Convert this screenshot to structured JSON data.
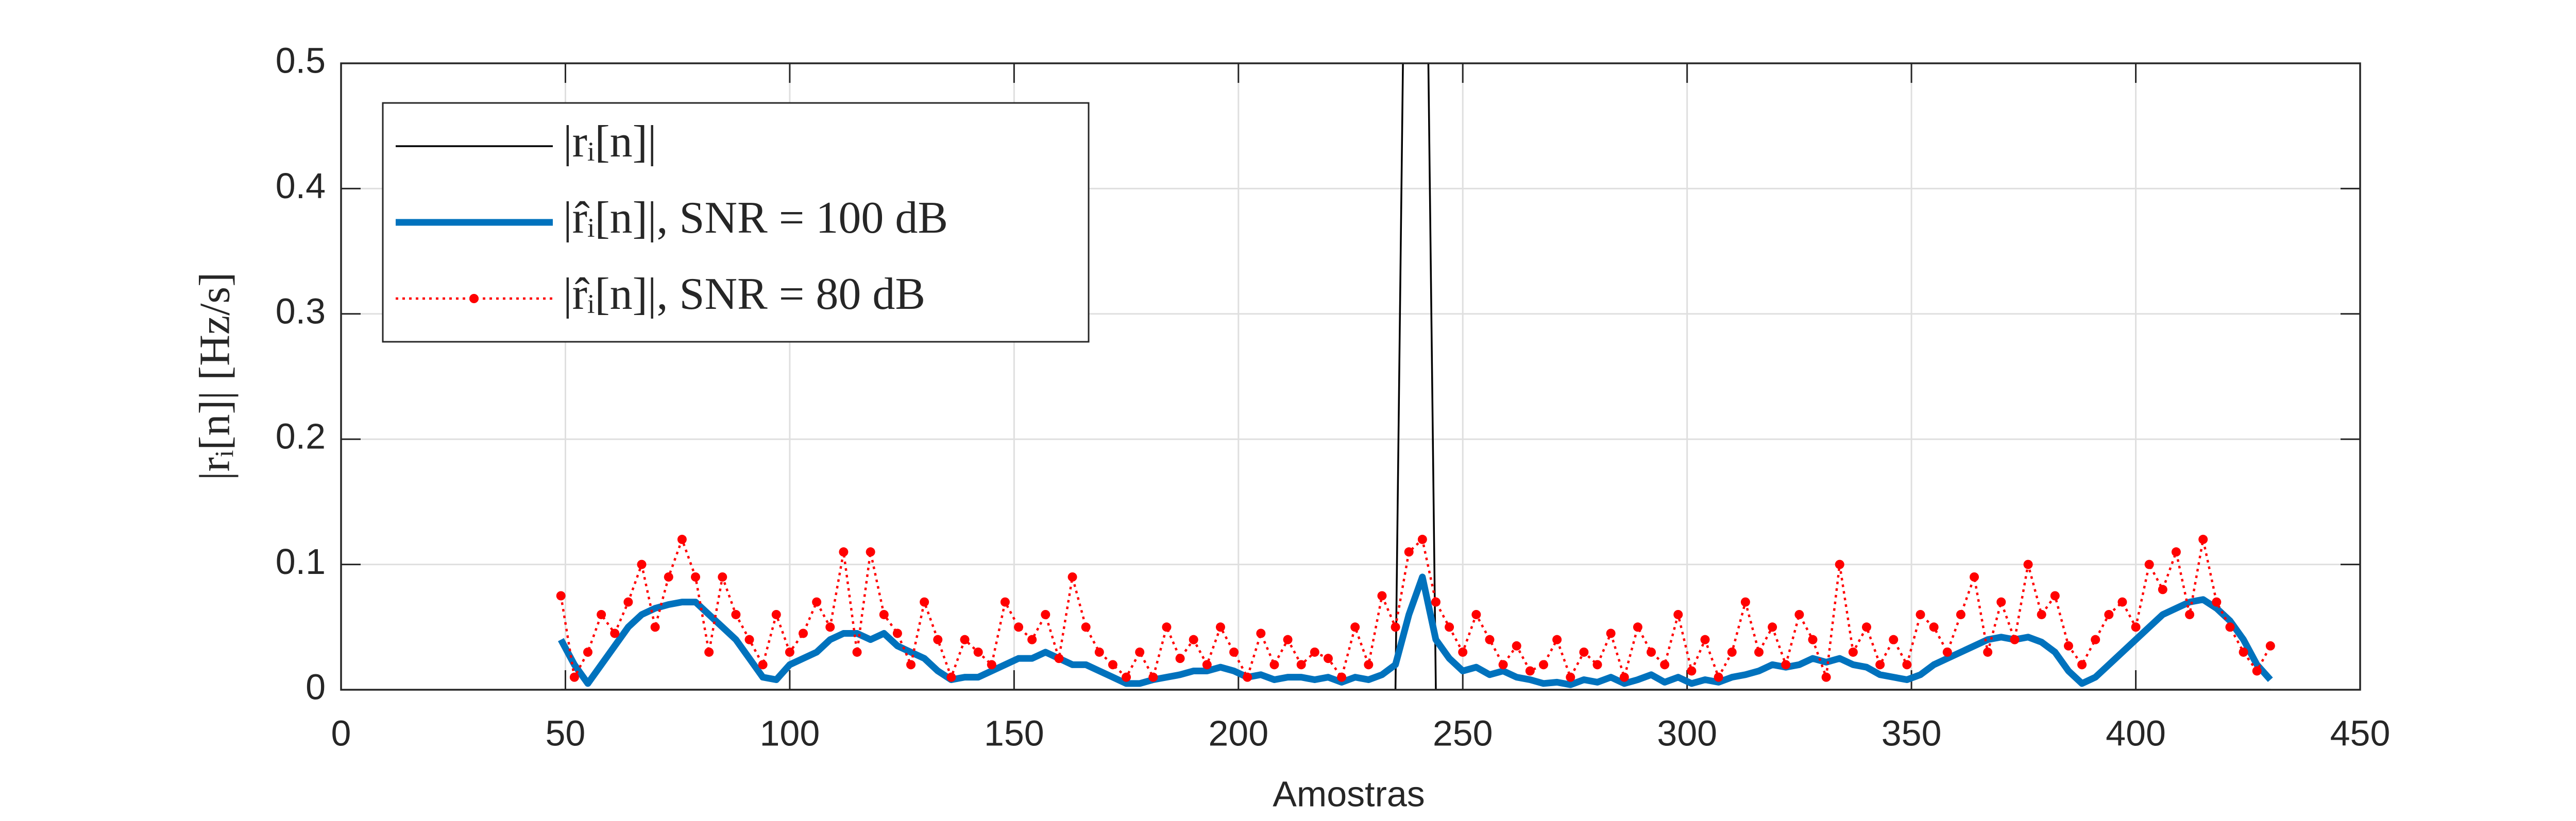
{
  "chart_data": {
    "type": "line",
    "xlabel": "Amostras",
    "ylabel": "|rᵢ[n]| [Hz/s]",
    "xlim": [
      0,
      450
    ],
    "xticks": [
      0,
      50,
      100,
      150,
      200,
      250,
      300,
      350,
      400,
      450
    ],
    "ylim": [
      0,
      0.5
    ],
    "yticks": [
      0,
      0.1,
      0.2,
      0.3,
      0.4,
      0.5
    ],
    "grid": true,
    "legend": "upper left",
    "x": [
      49,
      52,
      55,
      58,
      61,
      64,
      67,
      70,
      73,
      76,
      79,
      82,
      85,
      88,
      91,
      94,
      97,
      100,
      103,
      106,
      109,
      112,
      115,
      118,
      121,
      124,
      127,
      130,
      133,
      136,
      139,
      142,
      145,
      148,
      151,
      154,
      157,
      160,
      163,
      166,
      169,
      172,
      175,
      178,
      181,
      184,
      187,
      190,
      193,
      196,
      199,
      202,
      205,
      208,
      211,
      214,
      217,
      220,
      223,
      226,
      229,
      232,
      235,
      238,
      241,
      244,
      247,
      250,
      253,
      256,
      259,
      262,
      265,
      268,
      271,
      274,
      277,
      280,
      283,
      286,
      289,
      292,
      295,
      298,
      301,
      304,
      307,
      310,
      313,
      316,
      319,
      322,
      325,
      328,
      331,
      334,
      337,
      340,
      343,
      346,
      349,
      352,
      355,
      358,
      361,
      364,
      367,
      370,
      373,
      376,
      379,
      382,
      385,
      388,
      391,
      394,
      397,
      400,
      403,
      406,
      409,
      412,
      415,
      418,
      421,
      424,
      427,
      430
    ],
    "series": [
      {
        "name": "|rᵢ[n]|",
        "color": "#000000",
        "style": "solid",
        "values": [
          0,
          0,
          0,
          0,
          0,
          0,
          0,
          0,
          0,
          0,
          0,
          0,
          0,
          0,
          0,
          0,
          0,
          0,
          0,
          0,
          0,
          0,
          0,
          0,
          0,
          0,
          0,
          0,
          0,
          0,
          0,
          0,
          0,
          0,
          0,
          0,
          0,
          0,
          0,
          0,
          0,
          0,
          0,
          0,
          0,
          0,
          0,
          0,
          0,
          0,
          0,
          0,
          0,
          0,
          0,
          0,
          0,
          0,
          0,
          0,
          0,
          0,
          0,
          0.9,
          0.9,
          0,
          0,
          0,
          0,
          0,
          0,
          0,
          0,
          0,
          0,
          0,
          0,
          0,
          0,
          0,
          0,
          0,
          0,
          0,
          0,
          0,
          0,
          0,
          0,
          0,
          0,
          0,
          0,
          0,
          0,
          0,
          0,
          0,
          0,
          0,
          0,
          0,
          0,
          0,
          0,
          0,
          0,
          0,
          0,
          0,
          0,
          0,
          0,
          0,
          0,
          0,
          0,
          0,
          0,
          0,
          0,
          0,
          0,
          0,
          0,
          0,
          0,
          0
        ]
      },
      {
        "name": "|r̂ᵢ[n]|, SNR = 100 dB",
        "color": "#0072bd",
        "style": "thick",
        "values": [
          0.04,
          0.02,
          0.005,
          0.02,
          0.035,
          0.05,
          0.06,
          0.065,
          0.068,
          0.07,
          0.07,
          0.06,
          0.05,
          0.04,
          0.025,
          0.01,
          0.008,
          0.02,
          0.025,
          0.03,
          0.04,
          0.045,
          0.045,
          0.04,
          0.045,
          0.035,
          0.03,
          0.025,
          0.015,
          0.008,
          0.01,
          0.01,
          0.015,
          0.02,
          0.025,
          0.025,
          0.03,
          0.025,
          0.02,
          0.02,
          0.015,
          0.01,
          0.005,
          0.005,
          0.008,
          0.01,
          0.012,
          0.015,
          0.015,
          0.018,
          0.015,
          0.01,
          0.012,
          0.008,
          0.01,
          0.01,
          0.008,
          0.01,
          0.006,
          0.01,
          0.008,
          0.012,
          0.02,
          0.06,
          0.09,
          0.04,
          0.025,
          0.015,
          0.018,
          0.012,
          0.015,
          0.01,
          0.008,
          0.005,
          0.006,
          0.004,
          0.008,
          0.006,
          0.01,
          0.005,
          0.008,
          0.012,
          0.006,
          0.01,
          0.005,
          0.008,
          0.006,
          0.01,
          0.012,
          0.015,
          0.02,
          0.018,
          0.02,
          0.025,
          0.022,
          0.025,
          0.02,
          0.018,
          0.012,
          0.01,
          0.008,
          0.012,
          0.02,
          0.025,
          0.03,
          0.035,
          0.04,
          0.042,
          0.04,
          0.042,
          0.038,
          0.03,
          0.015,
          0.005,
          0.01,
          0.02,
          0.03,
          0.04,
          0.05,
          0.06,
          0.065,
          0.07,
          0.072,
          0.065,
          0.055,
          0.04,
          0.02,
          0.008
        ]
      },
      {
        "name": "|r̂ᵢ[n]|, SNR = 80 dB",
        "color": "#ff0000",
        "style": "dotted-markers",
        "values": [
          0.075,
          0.01,
          0.03,
          0.06,
          0.045,
          0.07,
          0.1,
          0.05,
          0.09,
          0.12,
          0.09,
          0.03,
          0.09,
          0.06,
          0.04,
          0.02,
          0.06,
          0.03,
          0.045,
          0.07,
          0.05,
          0.11,
          0.03,
          0.11,
          0.06,
          0.045,
          0.02,
          0.07,
          0.04,
          0.01,
          0.04,
          0.03,
          0.02,
          0.07,
          0.05,
          0.04,
          0.06,
          0.025,
          0.09,
          0.05,
          0.03,
          0.02,
          0.01,
          0.03,
          0.01,
          0.05,
          0.025,
          0.04,
          0.02,
          0.05,
          0.03,
          0.01,
          0.045,
          0.02,
          0.04,
          0.02,
          0.03,
          0.025,
          0.01,
          0.05,
          0.02,
          0.075,
          0.05,
          0.11,
          0.12,
          0.07,
          0.05,
          0.03,
          0.06,
          0.04,
          0.02,
          0.035,
          0.015,
          0.02,
          0.04,
          0.01,
          0.03,
          0.02,
          0.045,
          0.01,
          0.05,
          0.03,
          0.02,
          0.06,
          0.015,
          0.04,
          0.01,
          0.03,
          0.07,
          0.03,
          0.05,
          0.02,
          0.06,
          0.04,
          0.01,
          0.1,
          0.03,
          0.05,
          0.02,
          0.04,
          0.02,
          0.06,
          0.05,
          0.03,
          0.06,
          0.09,
          0.03,
          0.07,
          0.04,
          0.1,
          0.06,
          0.075,
          0.035,
          0.02,
          0.04,
          0.06,
          0.07,
          0.05,
          0.1,
          0.08,
          0.11,
          0.06,
          0.12,
          0.07,
          0.05,
          0.03,
          0.015,
          0.035
        ]
      }
    ]
  }
}
